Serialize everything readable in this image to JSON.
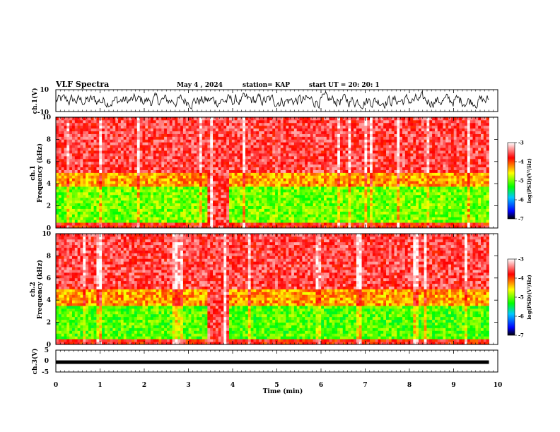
{
  "header": {
    "title": "VLF Spectra",
    "date": "May 4 , 2024",
    "station": "station= KAP",
    "start": "start  UT  =   20: 20: 1"
  },
  "chart_data": [
    {
      "type": "line",
      "name": "ch1-waveform",
      "ylabel": "ch.1(V)",
      "ylim": [
        -10,
        10
      ],
      "yticks": [
        "10",
        "-10"
      ],
      "xlim": [
        0,
        10
      ],
      "data_end_min": 9.8,
      "description_values": "noisy waveform fluctuating mostly between -5 and 5 V"
    },
    {
      "type": "heatmap",
      "name": "ch1-spectrogram",
      "ylabel_line1": "ch.1",
      "ylabel_line2": "Frequency  (kHz)",
      "ylim": [
        0,
        10
      ],
      "yticks": [
        "0",
        "2",
        "4",
        "6",
        "8",
        "10"
      ],
      "xlim": [
        0,
        10
      ],
      "data_end_min": 9.8,
      "colorbar": {
        "label": "log(PSD)(V²/Hz)",
        "range": [
          -7,
          -3
        ],
        "ticks": [
          "-3",
          "-4",
          "-5",
          "-6",
          "-7"
        ]
      },
      "bands_khz": [
        {
          "from": 0,
          "to": 0.6,
          "level": -3.8
        },
        {
          "from": 0.6,
          "to": 3.8,
          "level": -5.0
        },
        {
          "from": 3.8,
          "to": 5.0,
          "level": -4.3
        },
        {
          "from": 5.0,
          "to": 10,
          "level": -3.6
        }
      ],
      "broadband_event_min": [
        3.4,
        3.95
      ]
    },
    {
      "type": "heatmap",
      "name": "ch2-spectrogram",
      "ylabel_line1": "ch.2",
      "ylabel_line2": "Frequency  (kHz)",
      "ylim": [
        0,
        10
      ],
      "yticks": [
        "0",
        "2",
        "4",
        "6",
        "8",
        "10"
      ],
      "xlim": [
        0,
        10
      ],
      "data_end_min": 9.8,
      "colorbar": {
        "label": "log(PSD)(V²/Hz)",
        "range": [
          -7,
          -3
        ],
        "ticks": [
          "-3",
          "-4",
          "-5",
          "-6",
          "-7"
        ]
      },
      "bands_khz": [
        {
          "from": 0,
          "to": 0.6,
          "level": -3.8
        },
        {
          "from": 0.6,
          "to": 3.6,
          "level": -5.1
        },
        {
          "from": 3.6,
          "to": 5.0,
          "level": -4.3
        },
        {
          "from": 5.0,
          "to": 10,
          "level": -3.6
        }
      ],
      "broadband_event_min": [
        3.4,
        3.95
      ]
    },
    {
      "type": "line",
      "name": "ch3-waveform",
      "ylabel": "ch.3(V)",
      "ylim": [
        -5,
        5
      ],
      "yticks": [
        "5",
        "0",
        "-5"
      ],
      "xlim": [
        0,
        10
      ],
      "data_end_min": 9.8,
      "level_v": -0.5
    }
  ],
  "xaxis": {
    "label": "Time  (min)",
    "ticks": [
      "0",
      "1",
      "2",
      "3",
      "4",
      "5",
      "6",
      "7",
      "8",
      "9",
      "10"
    ]
  }
}
